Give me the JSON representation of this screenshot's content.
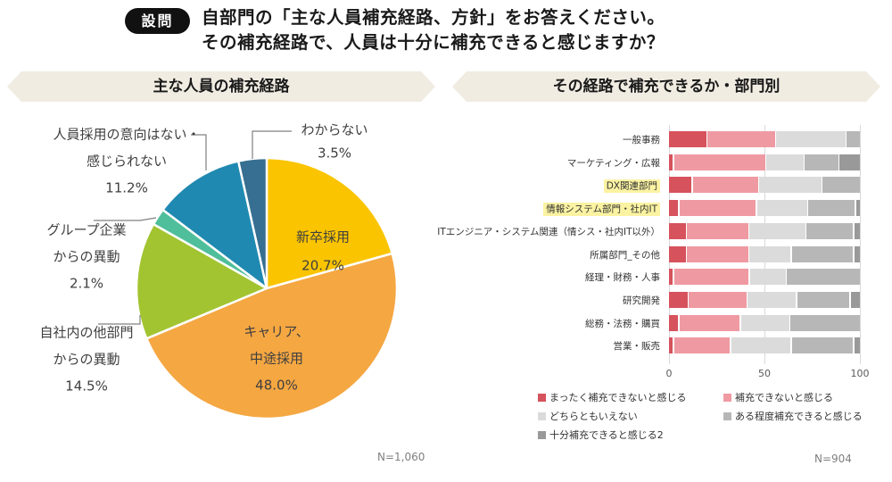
{
  "header": {
    "badge": "設問",
    "title_line1": "自部門の「主な人員補充経路、方針」をお答えください。",
    "title_line2": "その補充経路で、人員は十分に補充できると感じますか？"
  },
  "chart_data": [
    {
      "type": "pie",
      "title": "主な人員の補充経路",
      "n_label": "N=1,060",
      "start_angle_deg": 0,
      "direction": "clockwise",
      "slices": [
        {
          "label": "新卒採用",
          "label_lines": [
            "新卒採用"
          ],
          "value": 20.7,
          "value_label": "20.7%",
          "color": "#FAC400",
          "label_position": "inside"
        },
        {
          "label": "キャリア、中途採用",
          "label_lines": [
            "キャリア、",
            "中途採用"
          ],
          "value": 48.0,
          "value_label": "48.0%",
          "color": "#F5A742",
          "label_position": "inside"
        },
        {
          "label": "自社内の他部門からの異動",
          "label_lines": [
            "自社内の他部門",
            "からの異動"
          ],
          "value": 14.5,
          "value_label": "14.5%",
          "color": "#A2C431",
          "label_position": "outside"
        },
        {
          "label": "グループ企業からの異動",
          "label_lines": [
            "グループ企業",
            "からの異動"
          ],
          "value": 2.1,
          "value_label": "2.1%",
          "color": "#4FBE9A",
          "label_position": "outside"
        },
        {
          "label": "人員採用の意向はない・感じられない",
          "label_lines": [
            "人員採用の意向はない・",
            "感じられない"
          ],
          "value": 11.2,
          "value_label": "11.2%",
          "color": "#2089B1",
          "label_position": "outside"
        },
        {
          "label": "わからない",
          "label_lines": [
            "わからない"
          ],
          "value": 3.5,
          "value_label": "3.5%",
          "color": "#376F92",
          "label_position": "outside"
        }
      ]
    },
    {
      "type": "bar",
      "subtype": "stacked-horizontal",
      "title": "その経路で補充できるか・部門別",
      "n_label": "N=904",
      "xlim": [
        0,
        100
      ],
      "x_ticks": [
        "0",
        "50",
        "100"
      ],
      "grid": true,
      "legend_position": "bottom",
      "highlight_color": "#FBF3A2",
      "categories": [
        "一般事務",
        "マーケティング・広報",
        "DX関連部門",
        "情報システム部門・社内IT",
        "ITエンジニア・システム関連（情シス・社内IT以外）",
        "所属部門_その他",
        "経理・財務・人事",
        "研究開発",
        "総務・法務・購買",
        "営業・販売"
      ],
      "highlighted_categories": [
        "DX関連部門",
        "情報システム部門・社内IT"
      ],
      "series": [
        {
          "name": "まったく補充できないと感じる",
          "color": "#D6525C",
          "values": [
            20,
            2,
            12,
            5,
            9,
            9,
            2,
            10,
            5,
            2
          ]
        },
        {
          "name": "補充できないと感じる",
          "color": "#EF9AA2",
          "values": [
            36,
            49,
            35,
            41,
            33,
            33,
            40,
            31,
            32,
            30
          ]
        },
        {
          "name": "どちらともいえない",
          "color": "#DBDBDB",
          "values": [
            37,
            20,
            33,
            27,
            30,
            22,
            19,
            26,
            26,
            32
          ]
        },
        {
          "name": "ある程度補充できると感じる",
          "color": "#B7B7B7",
          "values": [
            7,
            18,
            20,
            25,
            25,
            33,
            39,
            28,
            37,
            33
          ]
        },
        {
          "name": "十分補充できると感じる2",
          "color": "#999999",
          "values": [
            0,
            11,
            0,
            2,
            3,
            3,
            0,
            5,
            0,
            3
          ]
        }
      ]
    }
  ]
}
